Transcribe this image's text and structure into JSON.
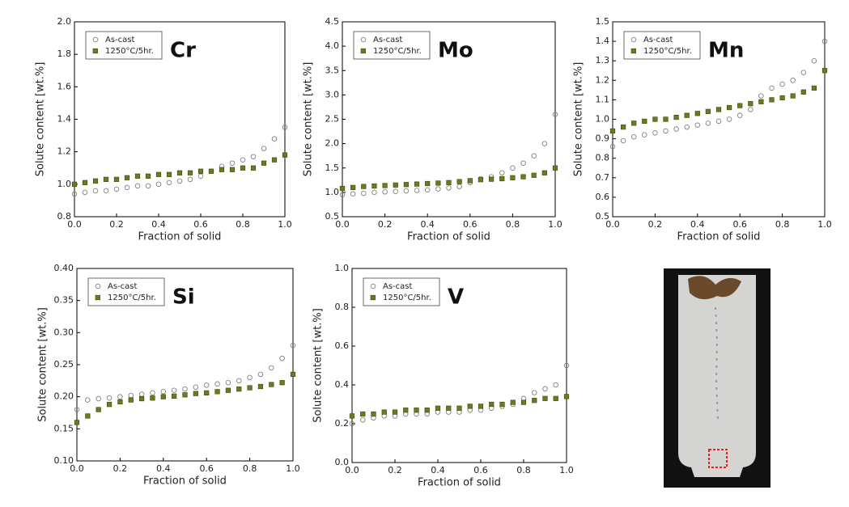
{
  "chart_data": [
    {
      "type": "scatter",
      "title": "Cr",
      "xlabel": "Fraction of solid",
      "ylabel": "Solute content [wt.%]",
      "x": [
        0,
        0.05,
        0.1,
        0.15,
        0.2,
        0.25,
        0.3,
        0.35,
        0.4,
        0.45,
        0.5,
        0.55,
        0.6,
        0.65,
        0.7,
        0.75,
        0.8,
        0.85,
        0.9,
        0.95,
        1
      ],
      "xlim": [
        0,
        1
      ],
      "xticks": [
        {
          "value": 0,
          "label": "0.0"
        },
        0.2,
        0.4,
        0.6,
        0.8,
        {
          "value": 1,
          "label": "1.0"
        }
      ],
      "ylim": [
        0.8,
        2.0
      ],
      "yticks": [
        0.8,
        {
          "value": 1,
          "label": "1.0"
        },
        1.2,
        1.4,
        1.6,
        1.8,
        {
          "value": 2,
          "label": "2.0"
        }
      ],
      "series": [
        {
          "name": "As-cast",
          "color": "#808080",
          "marker": "circle",
          "values": [
            0.94,
            0.95,
            0.96,
            0.96,
            0.97,
            0.98,
            0.99,
            0.99,
            1.0,
            1.01,
            1.02,
            1.03,
            1.05,
            1.08,
            1.11,
            1.13,
            1.15,
            1.17,
            1.22,
            1.28,
            1.35
          ]
        },
        {
          "name": "1250°C/5hr.",
          "color": "#6f7a1e",
          "marker": "square",
          "values": [
            1.0,
            1.01,
            1.02,
            1.03,
            1.03,
            1.04,
            1.05,
            1.05,
            1.06,
            1.06,
            1.07,
            1.07,
            1.08,
            1.08,
            1.09,
            1.09,
            1.1,
            1.1,
            1.13,
            1.15,
            1.18
          ]
        }
      ]
    },
    {
      "type": "scatter",
      "title": "Mo",
      "xlabel": "Fraction of solid",
      "ylabel": "Solute content [wt.%]",
      "x": [
        0,
        0.05,
        0.1,
        0.15,
        0.2,
        0.25,
        0.3,
        0.35,
        0.4,
        0.45,
        0.5,
        0.55,
        0.6,
        0.65,
        0.7,
        0.75,
        0.8,
        0.85,
        0.9,
        0.95,
        1
      ],
      "xlim": [
        0,
        1
      ],
      "xticks": [
        {
          "value": 0,
          "label": "0.0"
        },
        0.2,
        0.4,
        0.6,
        0.8,
        {
          "value": 1,
          "label": "1.0"
        }
      ],
      "ylim": [
        0.5,
        4.5
      ],
      "yticks": [
        0.5,
        {
          "value": 1,
          "label": "1.0"
        },
        1.5,
        {
          "value": 2,
          "label": "2.0"
        },
        2.5,
        {
          "value": 3,
          "label": "3.0"
        },
        3.5,
        {
          "value": 4,
          "label": "4.0"
        },
        4.5
      ],
      "series": [
        {
          "name": "As-cast",
          "color": "#808080",
          "marker": "circle",
          "values": [
            0.95,
            0.97,
            0.98,
            1.0,
            1.01,
            1.02,
            1.03,
            1.04,
            1.05,
            1.07,
            1.09,
            1.12,
            1.2,
            1.28,
            1.32,
            1.4,
            1.5,
            1.6,
            1.75,
            2.0,
            2.6
          ]
        },
        {
          "name": "1250°C/5hr.",
          "color": "#6f7a1e",
          "marker": "square",
          "values": [
            1.08,
            1.1,
            1.12,
            1.13,
            1.14,
            1.15,
            1.16,
            1.17,
            1.18,
            1.19,
            1.2,
            1.22,
            1.24,
            1.26,
            1.27,
            1.28,
            1.3,
            1.32,
            1.35,
            1.4,
            1.5
          ]
        }
      ]
    },
    {
      "type": "scatter",
      "title": "Mn",
      "xlabel": "Fraction of solid",
      "ylabel": "Solute content [wt.%]",
      "x": [
        0,
        0.05,
        0.1,
        0.15,
        0.2,
        0.25,
        0.3,
        0.35,
        0.4,
        0.45,
        0.5,
        0.55,
        0.6,
        0.65,
        0.7,
        0.75,
        0.8,
        0.85,
        0.9,
        0.95,
        1
      ],
      "xlim": [
        0,
        1
      ],
      "xticks": [
        {
          "value": 0,
          "label": "0.0"
        },
        0.2,
        0.4,
        0.6,
        0.8,
        {
          "value": 1,
          "label": "1.0"
        }
      ],
      "ylim": [
        0.5,
        1.5
      ],
      "yticks": [
        0.5,
        0.6,
        0.7,
        0.8,
        0.9,
        {
          "value": 1,
          "label": "1.0"
        },
        1.1,
        1.2,
        1.3,
        1.4,
        1.5
      ],
      "series": [
        {
          "name": "As-cast",
          "color": "#808080",
          "marker": "circle",
          "values": [
            0.86,
            0.89,
            0.91,
            0.92,
            0.93,
            0.94,
            0.95,
            0.96,
            0.97,
            0.98,
            0.99,
            1.0,
            1.02,
            1.05,
            1.12,
            1.16,
            1.18,
            1.2,
            1.24,
            1.3,
            1.4
          ]
        },
        {
          "name": "1250°C/5hr.",
          "color": "#6f7a1e",
          "marker": "square",
          "values": [
            0.94,
            0.96,
            0.98,
            0.99,
            1.0,
            1.0,
            1.01,
            1.02,
            1.03,
            1.04,
            1.05,
            1.06,
            1.07,
            1.08,
            1.09,
            1.1,
            1.11,
            1.12,
            1.14,
            1.16,
            1.25
          ]
        }
      ]
    },
    {
      "type": "scatter",
      "title": "Si",
      "xlabel": "Fraction of solid",
      "ylabel": "Solute content [wt.%]",
      "x": [
        0,
        0.05,
        0.1,
        0.15,
        0.2,
        0.25,
        0.3,
        0.35,
        0.4,
        0.45,
        0.5,
        0.55,
        0.6,
        0.65,
        0.7,
        0.75,
        0.8,
        0.85,
        0.9,
        0.95,
        1
      ],
      "xlim": [
        0,
        1
      ],
      "xticks": [
        {
          "value": 0,
          "label": "0.0"
        },
        0.2,
        0.4,
        0.6,
        0.8,
        {
          "value": 1,
          "label": "1.0"
        }
      ],
      "ylim": [
        0.1,
        0.4
      ],
      "yticks": [
        {
          "value": 0.1,
          "label": "0.10"
        },
        0.15,
        {
          "value": 0.2,
          "label": "0.20"
        },
        0.25,
        {
          "value": 0.3,
          "label": "0.30"
        },
        0.35,
        {
          "value": 0.4,
          "label": "0.40"
        }
      ],
      "series": [
        {
          "name": "As-cast",
          "color": "#808080",
          "marker": "circle",
          "values": [
            0.18,
            0.195,
            0.197,
            0.198,
            0.2,
            0.202,
            0.204,
            0.206,
            0.208,
            0.21,
            0.212,
            0.215,
            0.218,
            0.22,
            0.222,
            0.225,
            0.23,
            0.235,
            0.245,
            0.26,
            0.28
          ]
        },
        {
          "name": "1250°C/5hr.",
          "color": "#6f7a1e",
          "marker": "square",
          "values": [
            0.16,
            0.17,
            0.18,
            0.188,
            0.192,
            0.195,
            0.197,
            0.198,
            0.2,
            0.201,
            0.203,
            0.205,
            0.206,
            0.208,
            0.21,
            0.212,
            0.214,
            0.216,
            0.219,
            0.222,
            0.235
          ]
        }
      ]
    },
    {
      "type": "scatter",
      "title": "V",
      "xlabel": "Fraction of solid",
      "ylabel": "Solute content [wt.%]",
      "x": [
        0,
        0.05,
        0.1,
        0.15,
        0.2,
        0.25,
        0.3,
        0.35,
        0.4,
        0.45,
        0.5,
        0.55,
        0.6,
        0.65,
        0.7,
        0.75,
        0.8,
        0.85,
        0.9,
        0.95,
        1
      ],
      "xlim": [
        0,
        1
      ],
      "xticks": [
        {
          "value": 0,
          "label": "0.0"
        },
        0.2,
        0.4,
        0.6,
        0.8,
        {
          "value": 1,
          "label": "1.0"
        }
      ],
      "ylim": [
        0,
        1
      ],
      "yticks": [
        {
          "value": 0,
          "label": "0.0"
        },
        0.2,
        0.4,
        0.6,
        0.8,
        {
          "value": 1,
          "label": "1.0"
        }
      ],
      "series": [
        {
          "name": "As-cast",
          "color": "#808080",
          "marker": "circle",
          "values": [
            0.2,
            0.22,
            0.23,
            0.24,
            0.24,
            0.25,
            0.25,
            0.25,
            0.26,
            0.26,
            0.26,
            0.27,
            0.27,
            0.28,
            0.29,
            0.3,
            0.33,
            0.36,
            0.38,
            0.4,
            0.5
          ]
        },
        {
          "name": "1250°C/5hr.",
          "color": "#6f7a1e",
          "marker": "square",
          "values": [
            0.24,
            0.25,
            0.25,
            0.26,
            0.26,
            0.27,
            0.27,
            0.27,
            0.28,
            0.28,
            0.28,
            0.29,
            0.29,
            0.3,
            0.3,
            0.31,
            0.31,
            0.32,
            0.33,
            0.33,
            0.34
          ]
        }
      ]
    }
  ]
}
